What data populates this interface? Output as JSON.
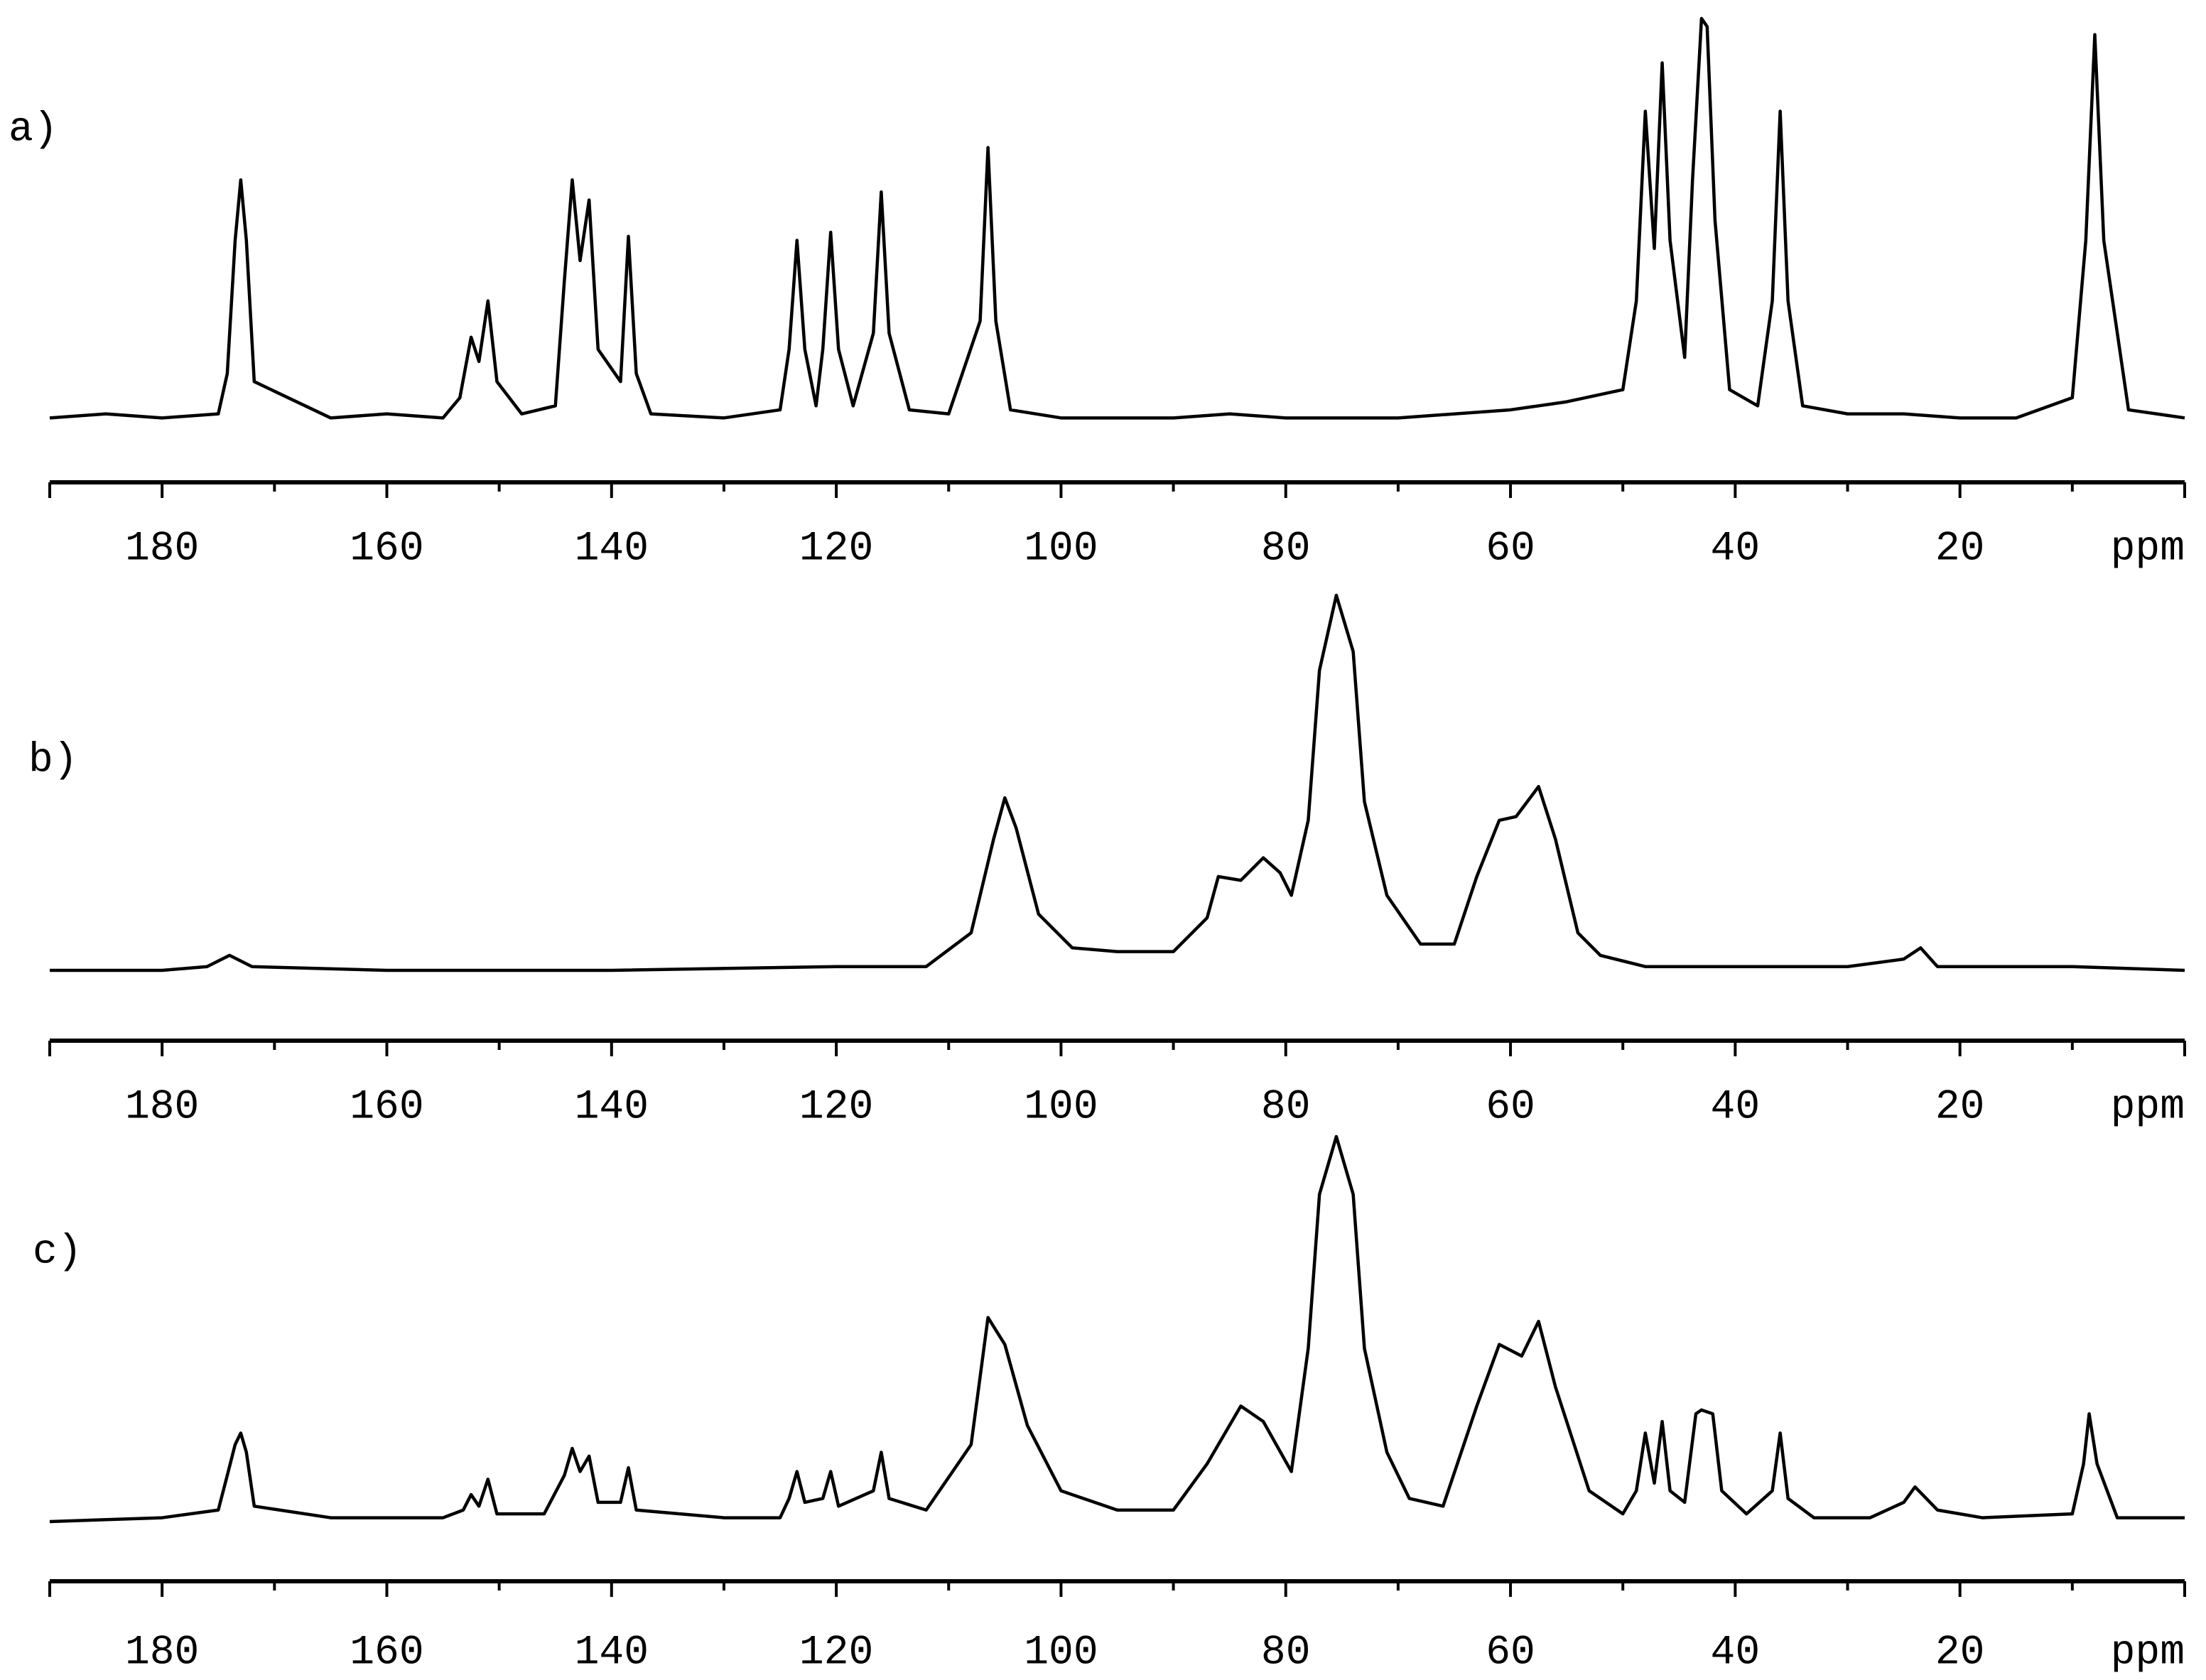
{
  "chart_data": [
    {
      "type": "line",
      "title": "a)",
      "xlabel": "ppm",
      "color": "#000000",
      "xlim": [
        190,
        0
      ],
      "ylim": [
        0,
        100
      ],
      "xticks": [
        180,
        160,
        140,
        120,
        100,
        80,
        60,
        40,
        20
      ],
      "minor_xticks": [
        190,
        170,
        150,
        130,
        110,
        90,
        70,
        50,
        30,
        10
      ],
      "x": [
        190,
        185,
        180,
        175,
        174.2,
        173.5,
        173,
        172.5,
        171.8,
        165,
        160,
        155,
        153.5,
        152.5,
        151.8,
        151,
        150.2,
        148,
        145,
        144.2,
        143.5,
        142.8,
        142,
        141.2,
        139.2,
        138.5,
        137.8,
        136.5,
        130,
        125,
        124.2,
        123.5,
        122.8,
        121.8,
        121.2,
        120.5,
        119.8,
        118.5,
        116.7,
        116,
        115.3,
        113.5,
        110,
        107.2,
        106.5,
        105.8,
        104.5,
        100,
        90,
        85,
        80,
        70,
        60,
        55,
        50,
        48.8,
        48,
        47.2,
        46.5,
        45.8,
        44.5,
        43.8,
        43,
        42.5,
        41.8,
        40.5,
        38,
        36.7,
        36,
        35.3,
        34,
        30,
        25,
        20,
        15,
        10,
        8.8,
        8,
        7.2,
        5,
        0
      ],
      "values": [
        1,
        2,
        1,
        2,
        12,
        45,
        60,
        45,
        10,
        1,
        2,
        1,
        6,
        21,
        15,
        30,
        10,
        2,
        4,
        35,
        60,
        40,
        55,
        18,
        10,
        46,
        12,
        2,
        1,
        3,
        18,
        45,
        18,
        4,
        18,
        47,
        18,
        4,
        22,
        57,
        22,
        3,
        2,
        25,
        68,
        25,
        3,
        1,
        1,
        2,
        1,
        1,
        3,
        5,
        8,
        30,
        77,
        43,
        89,
        45,
        16,
        60,
        100,
        98,
        50,
        8,
        4,
        30,
        77,
        30,
        4,
        2,
        2,
        1,
        1,
        6,
        45,
        96,
        45,
        3,
        1
      ]
    },
    {
      "type": "line",
      "title": "b)",
      "xlabel": "ppm",
      "color": "#000000",
      "xlim": [
        190,
        0
      ],
      "ylim": [
        0,
        100
      ],
      "xticks": [
        180,
        160,
        140,
        120,
        100,
        80,
        60,
        40,
        20
      ],
      "minor_xticks": [
        190,
        170,
        150,
        130,
        110,
        90,
        70,
        50,
        30,
        10
      ],
      "x": [
        190,
        180,
        176,
        174,
        172,
        160,
        140,
        120,
        112,
        108,
        106,
        105,
        104,
        102,
        99,
        95,
        90,
        87,
        86,
        84,
        82,
        80.5,
        79.5,
        78,
        77,
        75.5,
        74,
        73,
        71,
        68,
        65,
        63,
        61,
        59.5,
        57.5,
        56,
        54,
        52,
        48,
        40,
        30,
        25,
        23.5,
        22,
        10,
        0
      ],
      "values": [
        0,
        0,
        1,
        4,
        1,
        0,
        0,
        1,
        1,
        10,
        35,
        46,
        38,
        15,
        6,
        5,
        5,
        14,
        25,
        24,
        30,
        26,
        20,
        40,
        80,
        100,
        85,
        45,
        20,
        7,
        7,
        25,
        40,
        41,
        49,
        35,
        10,
        4,
        1,
        1,
        1,
        3,
        6,
        1,
        1,
        0
      ]
    },
    {
      "type": "line",
      "title": "c)",
      "xlabel": "ppm",
      "color": "#000000",
      "xlim": [
        190,
        0
      ],
      "ylim": [
        0,
        100
      ],
      "xticks": [
        180,
        160,
        140,
        120,
        100,
        80,
        60,
        40,
        20
      ],
      "minor_xticks": [
        190,
        170,
        150,
        130,
        110,
        90,
        70,
        50,
        30,
        10
      ],
      "x": [
        190,
        180,
        175,
        174.2,
        173.5,
        173,
        172.5,
        171.8,
        165,
        160,
        155,
        153.2,
        152.5,
        151.8,
        151,
        150.2,
        146,
        144.2,
        143.5,
        142.8,
        142,
        141.2,
        139.2,
        138.5,
        137.8,
        130,
        125,
        124.2,
        123.5,
        122.8,
        121.2,
        120.5,
        119.8,
        116.7,
        116,
        115.3,
        112,
        108,
        106.5,
        105,
        103,
        100,
        95,
        90,
        87,
        84,
        82,
        79.5,
        78,
        77,
        75.5,
        74,
        73,
        71,
        69,
        66,
        63,
        61,
        59,
        57.5,
        56,
        53,
        50,
        48.8,
        48,
        47.2,
        46.5,
        45.8,
        44.5,
        43.5,
        43,
        42,
        41.2,
        39,
        36.7,
        36,
        35.3,
        33,
        28,
        25,
        24,
        22,
        18,
        10,
        9,
        8.5,
        7.8,
        6,
        0
      ],
      "values": [
        0,
        1,
        3,
        12,
        20,
        23,
        18,
        4,
        1,
        1,
        1,
        3,
        7,
        4,
        11,
        2,
        2,
        12,
        19,
        13,
        17,
        5,
        5,
        14,
        3,
        1,
        1,
        6,
        13,
        5,
        6,
        13,
        4,
        8,
        18,
        6,
        3,
        20,
        53,
        46,
        25,
        8,
        3,
        3,
        15,
        30,
        26,
        13,
        45,
        85,
        100,
        85,
        45,
        18,
        6,
        4,
        30,
        46,
        43,
        52,
        35,
        8,
        2,
        8,
        23,
        10,
        26,
        8,
        5,
        28,
        29,
        28,
        8,
        2,
        8,
        23,
        6,
        1,
        1,
        5,
        9,
        3,
        1,
        2,
        15,
        28,
        15,
        1,
        1
      ]
    }
  ]
}
